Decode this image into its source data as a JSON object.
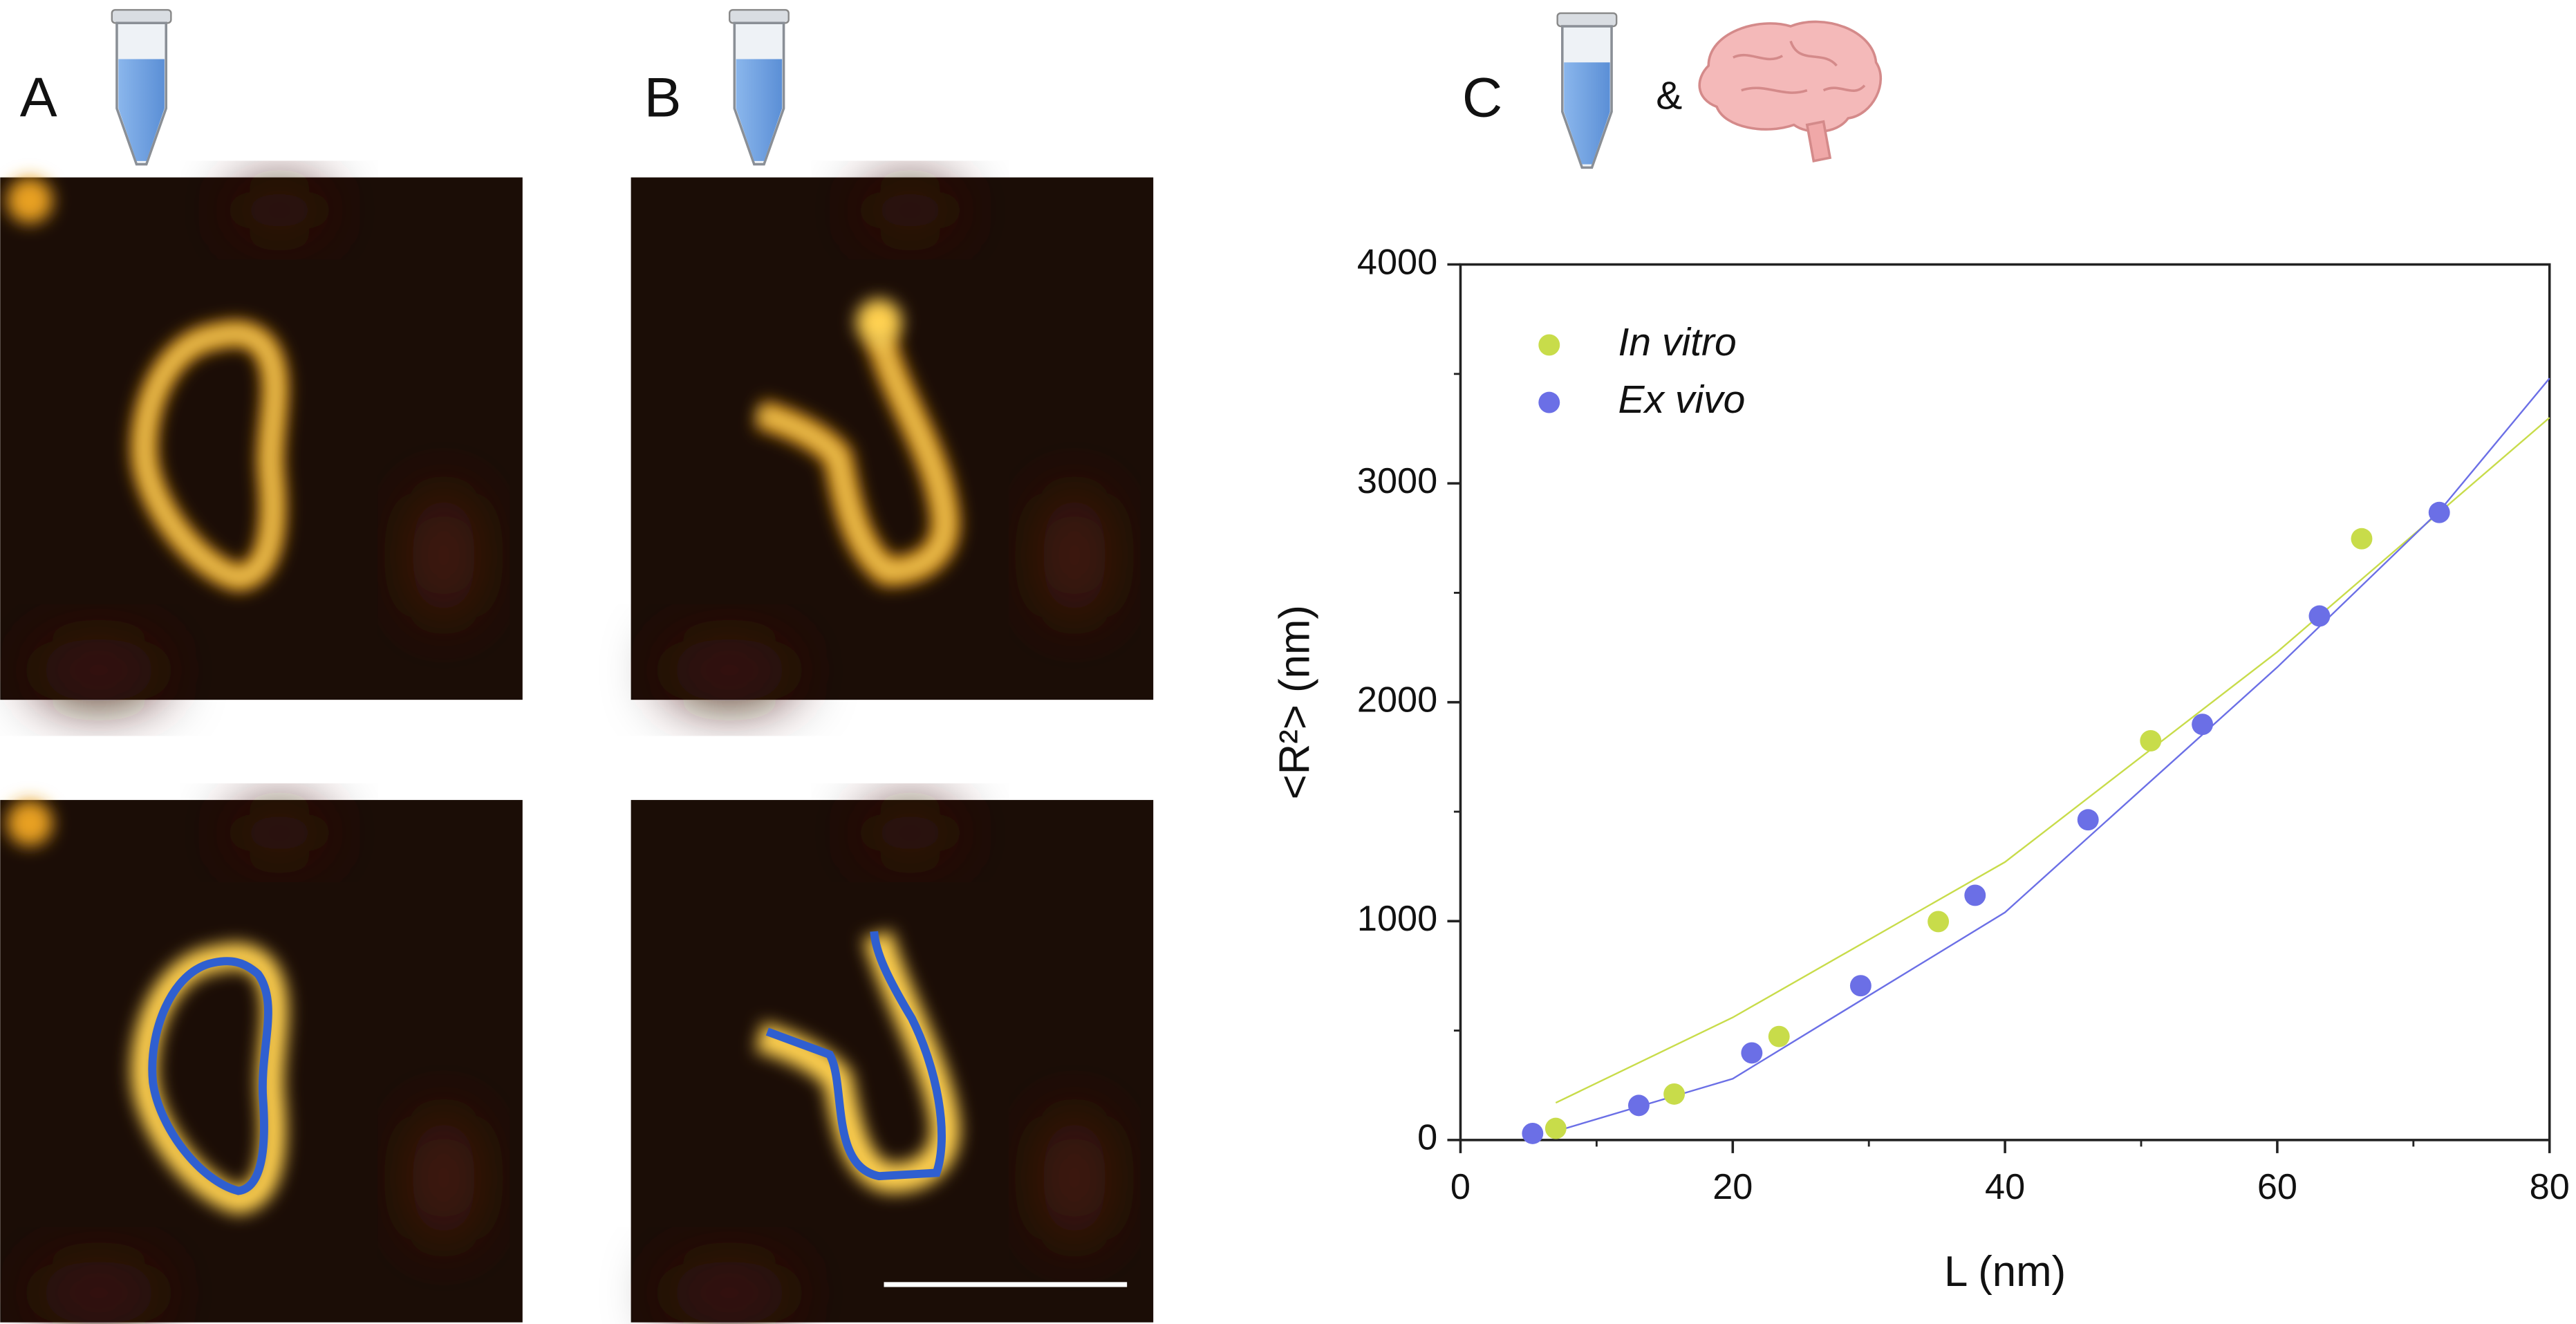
{
  "panels": [
    "A",
    "B",
    "C"
  ],
  "connector": "&",
  "chart_data": {
    "type": "scatter",
    "xlabel": "L (nm)",
    "ylabel": "<R²> (nm)",
    "xlim": [
      0,
      80
    ],
    "xticks": [
      0,
      20,
      40,
      60,
      80
    ],
    "ylim": [
      0,
      4000
    ],
    "yticks": [
      0,
      1000,
      2000,
      3000,
      4000
    ],
    "series": [
      {
        "name": "In vitro",
        "color": "#c8dc4a",
        "x": [
          7.0,
          15.7,
          23.4,
          35.1,
          50.7,
          66.2
        ],
        "values": [
          53,
          210,
          473,
          998,
          1824,
          2747
        ]
      },
      {
        "name": "Ex vivo",
        "color": "#6b6fe6",
        "x": [
          5.3,
          13.1,
          21.4,
          29.4,
          37.8,
          46.1,
          54.5,
          63.1,
          71.9
        ],
        "values": [
          30,
          158,
          398,
          705,
          1118,
          1463,
          1899,
          2394,
          2867
        ]
      }
    ],
    "fits": [
      {
        "color": "#c8dc4a",
        "x": [
          7,
          20,
          40,
          60,
          80
        ],
        "values": [
          170,
          560,
          1270,
          2230,
          3300
        ]
      },
      {
        "color": "#6b6fe6",
        "x": [
          7,
          20,
          40,
          60,
          72,
          80
        ],
        "values": [
          40,
          280,
          1040,
          2160,
          2880,
          3480
        ]
      }
    ]
  }
}
